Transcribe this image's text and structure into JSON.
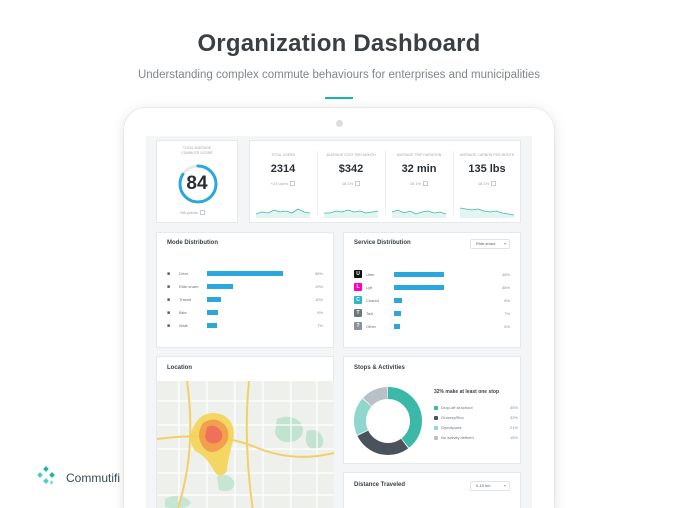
{
  "header": {
    "title": "Organization Dashboard",
    "subtitle": "Understanding complex commute behaviours for enterprises and municipalities"
  },
  "brand": {
    "name": "Commutifi",
    "icon": "commutifi-logo-icon"
  },
  "colors": {
    "accent": "#1bb5a6",
    "bar": "#2aa8dd",
    "teal": "#3bb8a8",
    "dark": "#4a535b",
    "light_teal": "#8fd6cc",
    "gray": "#b9c0c6"
  },
  "score": {
    "label_line1": "TOTAL AVERAGE",
    "label_line2": "COMMUTE SCORE",
    "value": "84",
    "progress": 0.84,
    "note": "+58 points"
  },
  "stats": [
    {
      "label": "TOTAL USERS",
      "value": "2314",
      "sub": "+23 users"
    },
    {
      "label": "AVERAGE COST PER MONTH",
      "value": "$342",
      "sub": "18.1%"
    },
    {
      "label": "AVERAGE TRIP DURATION",
      "value": "32 min",
      "sub": "18.1%"
    },
    {
      "label": "AVERAGE CARBON PER MONTH",
      "value": "135 lbs",
      "sub": "18.1%"
    }
  ],
  "mode_distribution": {
    "title": "Mode Distribution",
    "rows": [
      {
        "label": "Drive",
        "icon": "car-icon",
        "value": 56,
        "pct": "56%"
      },
      {
        "label": "Ride-share",
        "icon": "carpool-icon",
        "value": 19,
        "pct": "19%"
      },
      {
        "label": "Transit",
        "icon": "bus-icon",
        "value": 10,
        "pct": "10%"
      },
      {
        "label": "Bike",
        "icon": "bike-icon",
        "value": 8,
        "pct": "8%"
      },
      {
        "label": "Walk",
        "icon": "walk-icon",
        "value": 7,
        "pct": "7%"
      }
    ]
  },
  "service_distribution": {
    "title": "Service Distribution",
    "dropdown": "Ride-share",
    "rows": [
      {
        "label": "Uber",
        "icon": "uber-icon",
        "color": "#111111",
        "value": 48,
        "pct": "48%"
      },
      {
        "label": "Lyft",
        "icon": "lyft-icon",
        "color": "#ff00bf",
        "value": 48,
        "pct": "48%"
      },
      {
        "label": "Chariot",
        "icon": "chariot-icon",
        "color": "#2fb8c4",
        "value": 8,
        "pct": "8%"
      },
      {
        "label": "Taxi",
        "icon": "taxi-icon",
        "color": "#6f777e",
        "value": 7,
        "pct": "7%"
      },
      {
        "label": "Other",
        "icon": "question-icon",
        "color": "#8a9199",
        "value": 6,
        "pct": "6%"
      }
    ]
  },
  "location": {
    "title": "Location"
  },
  "stops": {
    "title": "Stops & Activities",
    "headline": "32% make at least one stop",
    "legend": [
      {
        "label": "Drop-off at school",
        "pct": "45%",
        "value": 45,
        "color": "#3bb8a8"
      },
      {
        "label": "Grocery/Run",
        "pct": "32%",
        "value": 32,
        "color": "#4a535b"
      },
      {
        "label": "Gym/sports",
        "pct": "21%",
        "value": 21,
        "color": "#8fd6cc"
      },
      {
        "label": "No activity defined",
        "pct": "15%",
        "value": 15,
        "color": "#b9c0c6"
      }
    ]
  },
  "distance": {
    "title": "Distance Traveled",
    "dropdown": "0-10 km"
  }
}
